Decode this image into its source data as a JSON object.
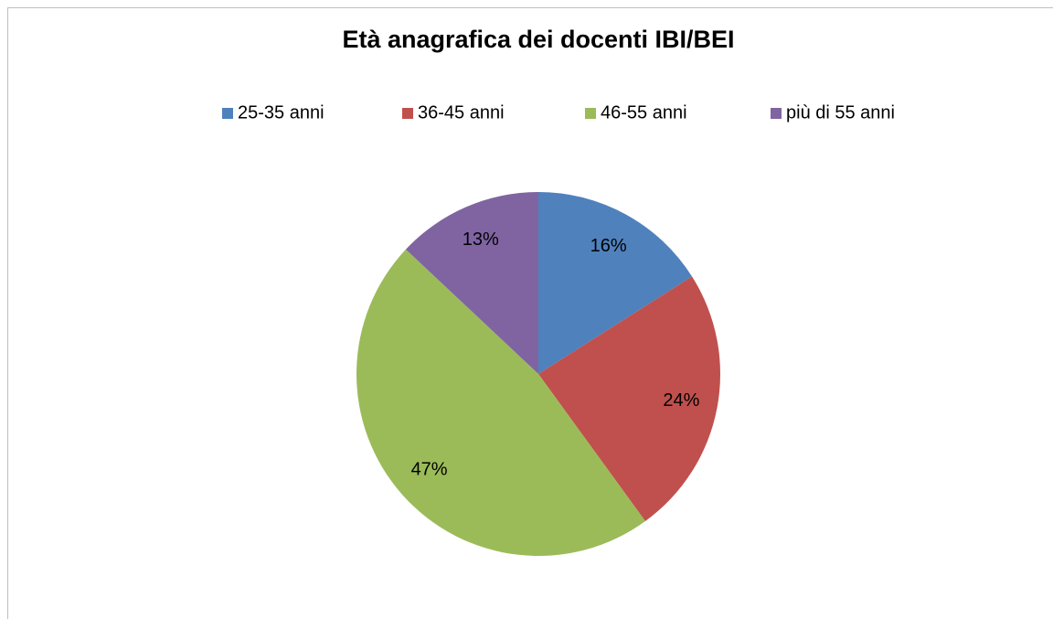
{
  "chart_data": {
    "type": "pie",
    "title": "Età anagrafica dei docenti IBI/BEI",
    "categories": [
      "25-35 anni",
      "36-45 anni",
      "46-55 anni",
      "più di 55 anni"
    ],
    "values": [
      16,
      24,
      47,
      13
    ],
    "value_labels": [
      "16%",
      "24%",
      "47%",
      "13%"
    ],
    "colors": [
      "#4f81bd",
      "#c0504d",
      "#9bbb59",
      "#8064a2"
    ],
    "legend": "top"
  }
}
